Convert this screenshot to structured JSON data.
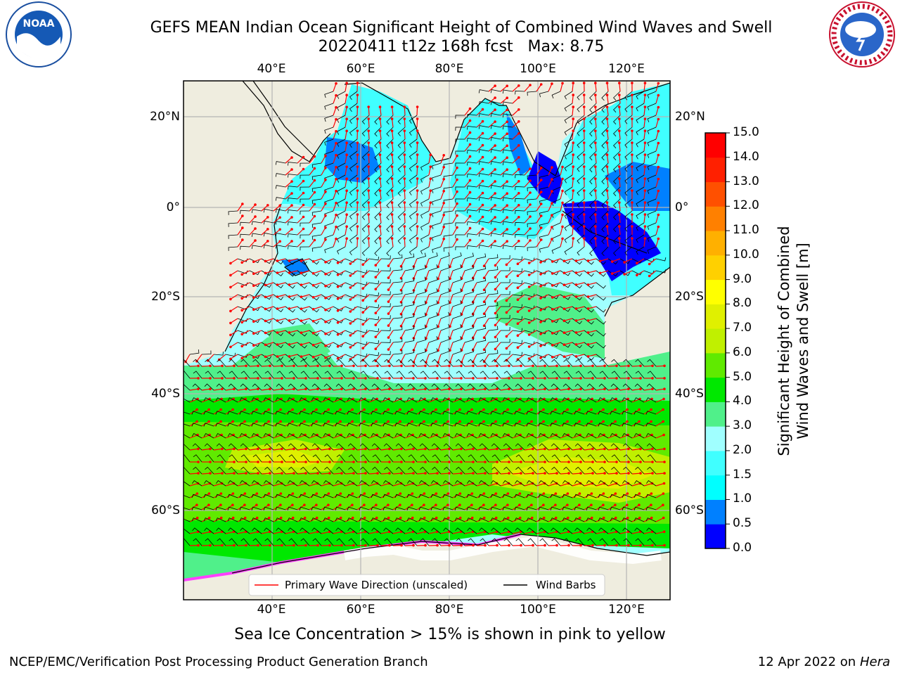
{
  "header": {
    "title_line1": "GEFS MEAN Indian Ocean Significant Height of Combined Wind Waves and Swell",
    "title_line2": "20220411 t12z 168h fcst   Max: 8.75"
  },
  "logos": {
    "left": {
      "icon": "noaa-logo",
      "text": "NOAA"
    },
    "right": {
      "icon": "national-weather-service-logo",
      "text": "NATIONAL WEATHER SERVICE"
    }
  },
  "map": {
    "lon_ticks": [
      "40°E",
      "60°E",
      "80°E",
      "100°E",
      "120°E"
    ],
    "lat_ticks": [
      "20°N",
      "0°",
      "20°S",
      "40°S",
      "60°S"
    ],
    "land_color": "#efeddf",
    "grid_color": "#b5b5b5",
    "legend": {
      "wave_direction": "Primary Wave Direction (unscaled)",
      "wind_barbs": "Wind Barbs",
      "wave_color": "#ff0000",
      "barb_color": "#000000"
    }
  },
  "colorbar": {
    "label_line1": "Significant Height of Combined",
    "label_line2": "Wind Waves and Swell [m]",
    "ticks": [
      "0.0",
      "0.5",
      "1.0",
      "1.5",
      "2.0",
      "3.0",
      "4.0",
      "5.0",
      "6.0",
      "7.0",
      "8.0",
      "9.0",
      "10.0",
      "11.0",
      "12.0",
      "13.0",
      "14.0",
      "15.0"
    ],
    "colors": [
      "#0000ff",
      "#0080ff",
      "#00ffff",
      "#40ffff",
      "#a0ffff",
      "#50f08a",
      "#00e800",
      "#60ea00",
      "#c0f000",
      "#e0f000",
      "#ffff00",
      "#ffd000",
      "#ffb000",
      "#ff8000",
      "#ff5000",
      "#ff2000",
      "#ff0000"
    ]
  },
  "caption": "Sea Ice Concentration > 15% is shown in pink to yellow",
  "footer": {
    "left": "NCEP/EMC/Verification Post Processing Product Generation Branch",
    "right_date": "12 Apr 2022 on ",
    "right_machine": "Hera"
  }
}
